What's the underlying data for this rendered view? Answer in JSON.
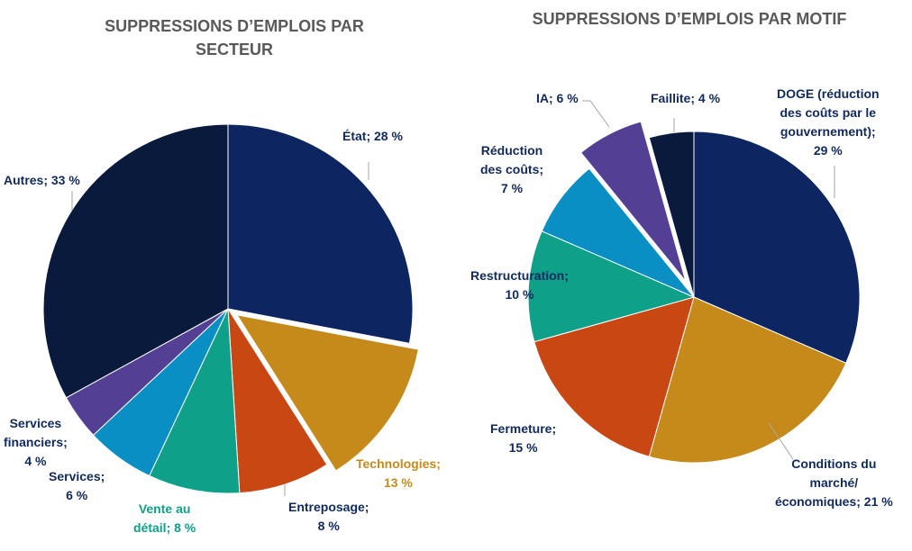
{
  "chart_data": [
    {
      "type": "pie",
      "title": "SUPPRESSIONS D’EMPLOIS PAR SECTEUR",
      "start": "top",
      "direction": "clockwise",
      "slices": [
        {
          "label": "État; 28 %",
          "name": "État",
          "value": 28,
          "color": "#0d2561"
        },
        {
          "label": "Technologies; 13 %",
          "name": "Technologies",
          "value": 13,
          "color": "#c68a1b",
          "exploded": true
        },
        {
          "label": "Entreposage; 8 %",
          "name": "Entreposage",
          "value": 8,
          "color": "#c84713"
        },
        {
          "label": "Vente au détail; 8 %",
          "name": "Vente au détail",
          "value": 8,
          "color": "#0ea088"
        },
        {
          "label": "Services; 6 %",
          "name": "Services",
          "value": 6,
          "color": "#0a8fc4"
        },
        {
          "label": "Services financiers; 4 %",
          "name": "Services financiers",
          "value": 4,
          "color": "#533f94"
        },
        {
          "label": "Autres; 33 %",
          "name": "Autres",
          "value": 33,
          "color": "#0a1a3d"
        }
      ]
    },
    {
      "type": "pie",
      "title": "SUPPRESSIONS D’EMPLOIS PAR MOTIF",
      "start": "top",
      "direction": "clockwise",
      "slices": [
        {
          "label": "DOGE (réduction des coûts par le gouvernement); 29 %",
          "name": "DOGE (réduction des coûts par le gouvernement)",
          "value": 29,
          "color": "#0d2561"
        },
        {
          "label": "Conditions du marché/ économiques; 21 %",
          "name": "Conditions du marché/ économiques",
          "value": 21,
          "color": "#c68a1b"
        },
        {
          "label": "Fermeture; 15 %",
          "name": "Fermeture",
          "value": 15,
          "color": "#c84713"
        },
        {
          "label": "Restructuration; 10 %",
          "name": "Restructuration",
          "value": 10,
          "color": "#0ea088"
        },
        {
          "label": "Réduction des coûts; 7 %",
          "name": "Réduction des coûts",
          "value": 7,
          "color": "#0a8fc4"
        },
        {
          "label": "IA; 6 %",
          "name": "IA",
          "value": 6,
          "color": "#533f94",
          "exploded": true
        },
        {
          "label": "Faillite; 4 %",
          "name": "Faillite",
          "value": 4,
          "color": "#0a1a3d"
        }
      ]
    }
  ],
  "titles": {
    "left_line1": "SUPPRESSIONS D’EMPLOIS PAR",
    "left_line2": "SECTEUR",
    "right": "SUPPRESSIONS D’EMPLOIS PAR MOTIF"
  },
  "labels": {
    "left": {
      "etat": [
        "État; 28 %"
      ],
      "tech": [
        "Technologies;",
        "13 %"
      ],
      "entre": [
        "Entreposage;",
        "8 %"
      ],
      "vente": [
        "Vente au",
        "détail; 8 %"
      ],
      "serv": [
        "Services;",
        "6 %"
      ],
      "fin": [
        "Services",
        "financiers;",
        "4 %"
      ],
      "autres": [
        "Autres; 33 %"
      ]
    },
    "right": {
      "doge": [
        "DOGE (réduction",
        "des coûts par le",
        "gouvernement);",
        "29 %"
      ],
      "cond": [
        "Conditions du",
        "marché/",
        "économiques; 21 %"
      ],
      "ferm": [
        "Fermeture;",
        "15 %"
      ],
      "restr": [
        "Restructuration;",
        "10 %"
      ],
      "red": [
        "Réduction",
        "des coûts;",
        "7 %"
      ],
      "ia": [
        "IA; 6 %"
      ],
      "fail": [
        "Faillite; 4 %"
      ]
    }
  }
}
